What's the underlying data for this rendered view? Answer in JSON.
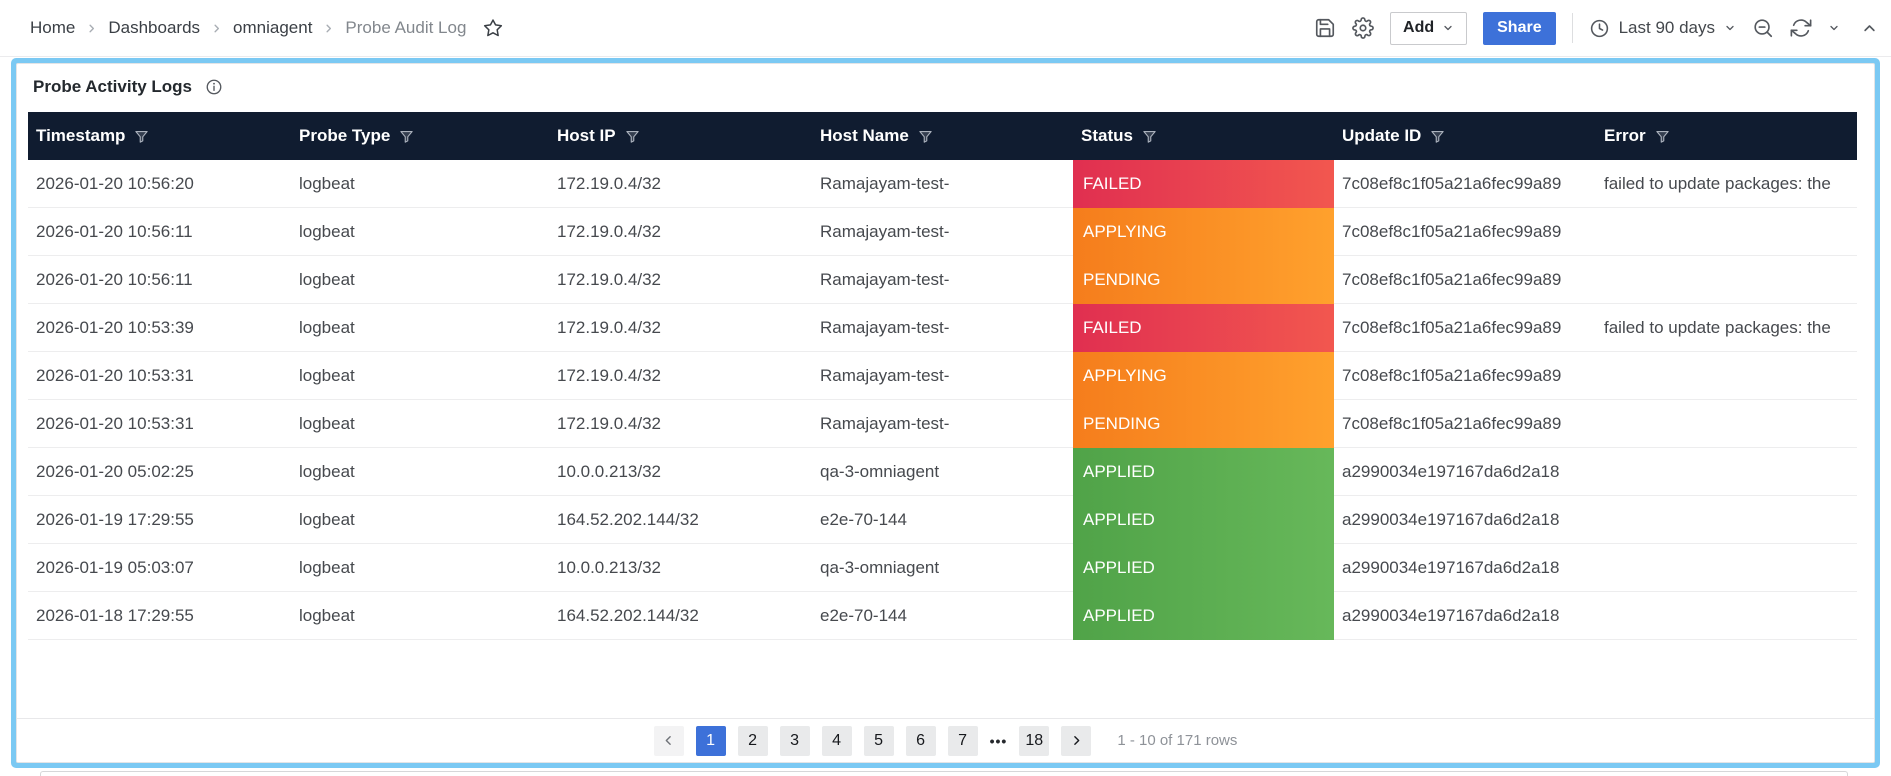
{
  "toolbar": {
    "breadcrumbs": [
      "Home",
      "Dashboards",
      "omniagent",
      "Probe Audit Log"
    ],
    "add_label": "Add",
    "share_label": "Share",
    "time_range_label": "Last 90 days",
    "icons": {
      "save-icon": "floppy-disk",
      "settings-icon": "gear",
      "star-icon": "star-outline",
      "clock-icon": "clock",
      "zoom-out-icon": "magnifier-minus",
      "refresh-icon": "circular-arrows",
      "chevron-down-icon": "chevron-down",
      "collapse-icon": "chevron-up"
    }
  },
  "panel": {
    "title": "Probe Activity Logs",
    "info_icon": "info-circle"
  },
  "table": {
    "columns": [
      {
        "key": "timestamp",
        "label": "Timestamp"
      },
      {
        "key": "probe_type",
        "label": "Probe Type"
      },
      {
        "key": "host_ip",
        "label": "Host IP"
      },
      {
        "key": "host_name",
        "label": "Host Name"
      },
      {
        "key": "status",
        "label": "Status"
      },
      {
        "key": "update_id",
        "label": "Update ID"
      },
      {
        "key": "error",
        "label": "Error"
      }
    ],
    "filter_icon": "funnel",
    "rows": [
      {
        "timestamp": "2026-01-20 10:56:20",
        "probe_type": "logbeat",
        "host_ip": "172.19.0.4/32",
        "host_name": "Ramajayam-test-",
        "status": "FAILED",
        "update_id": "7c08ef8c1f05a21a6fec99a89",
        "error": "failed to update packages: the"
      },
      {
        "timestamp": "2026-01-20 10:56:11",
        "probe_type": "logbeat",
        "host_ip": "172.19.0.4/32",
        "host_name": "Ramajayam-test-",
        "status": "APPLYING",
        "update_id": "7c08ef8c1f05a21a6fec99a89",
        "error": ""
      },
      {
        "timestamp": "2026-01-20 10:56:11",
        "probe_type": "logbeat",
        "host_ip": "172.19.0.4/32",
        "host_name": "Ramajayam-test-",
        "status": "PENDING",
        "update_id": "7c08ef8c1f05a21a6fec99a89",
        "error": ""
      },
      {
        "timestamp": "2026-01-20 10:53:39",
        "probe_type": "logbeat",
        "host_ip": "172.19.0.4/32",
        "host_name": "Ramajayam-test-",
        "status": "FAILED",
        "update_id": "7c08ef8c1f05a21a6fec99a89",
        "error": "failed to update packages: the"
      },
      {
        "timestamp": "2026-01-20 10:53:31",
        "probe_type": "logbeat",
        "host_ip": "172.19.0.4/32",
        "host_name": "Ramajayam-test-",
        "status": "APPLYING",
        "update_id": "7c08ef8c1f05a21a6fec99a89",
        "error": ""
      },
      {
        "timestamp": "2026-01-20 10:53:31",
        "probe_type": "logbeat",
        "host_ip": "172.19.0.4/32",
        "host_name": "Ramajayam-test-",
        "status": "PENDING",
        "update_id": "7c08ef8c1f05a21a6fec99a89",
        "error": ""
      },
      {
        "timestamp": "2026-01-20 05:02:25",
        "probe_type": "logbeat",
        "host_ip": "10.0.0.213/32",
        "host_name": "qa-3-omniagent",
        "status": "APPLIED",
        "update_id": "a2990034e197167da6d2a18",
        "error": ""
      },
      {
        "timestamp": "2026-01-19 17:29:55",
        "probe_type": "logbeat",
        "host_ip": "164.52.202.144/32",
        "host_name": "e2e-70-144",
        "status": "APPLIED",
        "update_id": "a2990034e197167da6d2a18",
        "error": ""
      },
      {
        "timestamp": "2026-01-19 05:03:07",
        "probe_type": "logbeat",
        "host_ip": "10.0.0.213/32",
        "host_name": "qa-3-omniagent",
        "status": "APPLIED",
        "update_id": "a2990034e197167da6d2a18",
        "error": ""
      },
      {
        "timestamp": "2026-01-18 17:29:55",
        "probe_type": "logbeat",
        "host_ip": "164.52.202.144/32",
        "host_name": "e2e-70-144",
        "status": "APPLIED",
        "update_id": "a2990034e197167da6d2a18",
        "error": ""
      }
    ]
  },
  "pagination": {
    "pages": [
      "1",
      "2",
      "3",
      "4",
      "5",
      "6",
      "7",
      "…",
      "18"
    ],
    "active_page": "1",
    "prev_icon": "chevron-left",
    "next_icon": "chevron-right",
    "summary": "1 - 10 of 171 rows"
  },
  "colors": {
    "accent_blue": "#3d71d9",
    "panel_border_blue": "#7bc9f3",
    "table_header_bg": "#101c30",
    "status": {
      "FAILED": [
        "#e02f50",
        "#f2574f"
      ],
      "APPLYING": [
        "#f57d1c",
        "#ffa12d"
      ],
      "PENDING": [
        "#f57d1c",
        "#ffa12d"
      ],
      "APPLIED": [
        "#50a348",
        "#67b85a"
      ]
    }
  }
}
